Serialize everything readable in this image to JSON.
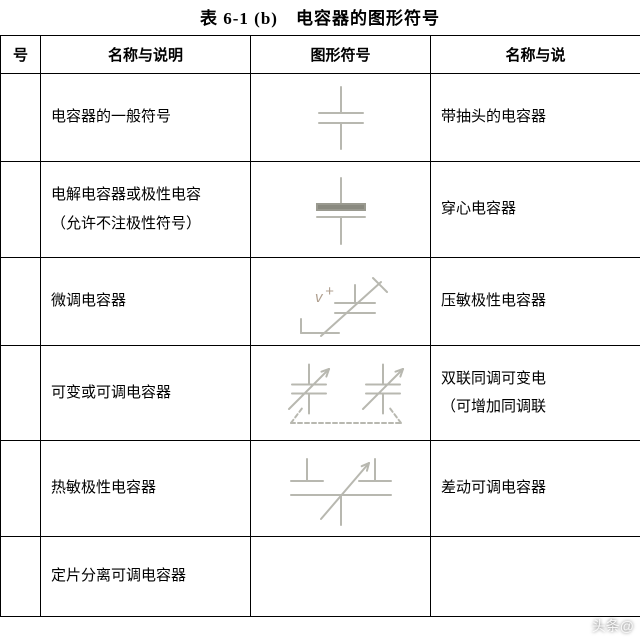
{
  "title": "表 6-1 (b)　电容器的图形符号",
  "headers": {
    "c0": "号",
    "c1": "名称与说明",
    "c2": "图形符号",
    "c3": "名称与说"
  },
  "rows": [
    {
      "name": "电容器的一般符号",
      "right": "带抽头的电容器",
      "symbol": "cap-basic"
    },
    {
      "name": "电解电容器或极性电容\n（允许不注极性符号）",
      "right": "穿心电容器",
      "symbol": "cap-polar"
    },
    {
      "name": "微调电容器",
      "right": "压敏极性电容器",
      "symbol": "cap-trim"
    },
    {
      "name": "可变或可调电容器",
      "right": "双联同调可变电\n（可增加同调联",
      "symbol": "cap-var-dual"
    },
    {
      "name": "热敏极性电容器",
      "right": "差动可调电容器",
      "symbol": "cap-thermo"
    },
    {
      "name": "定片分离可调电容器",
      "right": "",
      "symbol": ""
    }
  ],
  "watermark": "头条@",
  "style": {
    "stroke": "#b8b8b0",
    "stroke_dark": "#9a9a90",
    "fill_dark": "#8a8a80",
    "stroke_width": 2,
    "dash": "4,3",
    "text_color": "#b0a090",
    "font": "15px sans-serif"
  }
}
